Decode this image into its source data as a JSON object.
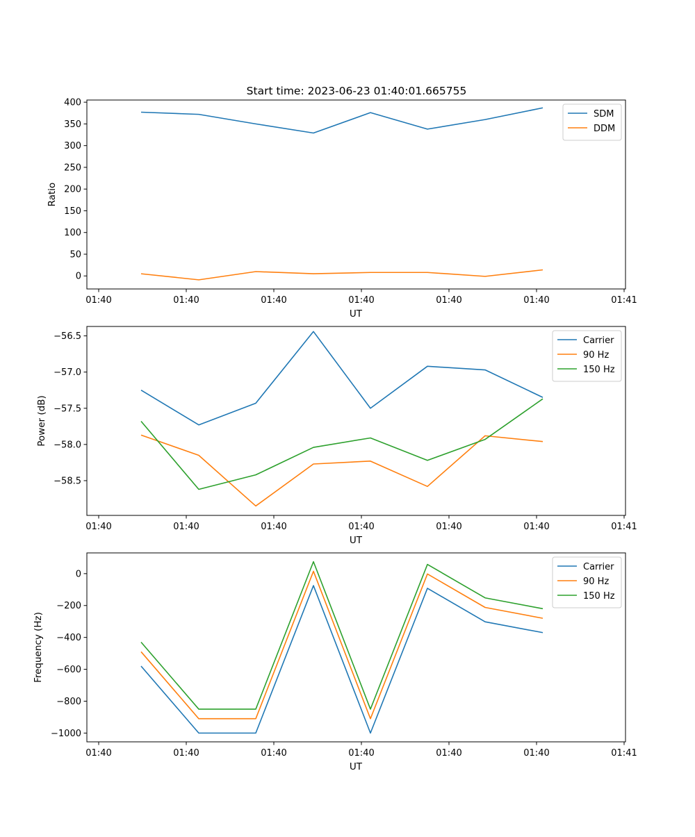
{
  "figure": {
    "title": "Start time: 2023-06-23 01:40:01.665755"
  },
  "chart_data": [
    {
      "type": "line",
      "title": "Start time: 2023-06-23 01:40:01.665755",
      "xlabel": "UT",
      "ylabel": "Ratio",
      "x": [
        1,
        2,
        3,
        4,
        5,
        6,
        7,
        8
      ],
      "x_ticks": [
        "01:40",
        "01:40",
        "01:40",
        "01:40",
        "01:40",
        "01:40",
        "01:41"
      ],
      "y_ticks": [
        0,
        50,
        100,
        150,
        200,
        250,
        300,
        350,
        400
      ],
      "ylim": [
        -30,
        405
      ],
      "legend_position": "top-right",
      "grid": false,
      "series": [
        {
          "name": "SDM",
          "color": "#1f77b4",
          "values": [
            377,
            372,
            350,
            329,
            376,
            338,
            360,
            387
          ]
        },
        {
          "name": "DDM",
          "color": "#ff7f0e",
          "values": [
            5,
            -9,
            10,
            5,
            8,
            8,
            -1,
            14
          ]
        }
      ]
    },
    {
      "type": "line",
      "xlabel": "UT",
      "ylabel": "Power (dB)",
      "x": [
        1,
        2,
        3,
        4,
        5,
        6,
        7,
        8
      ],
      "x_ticks": [
        "01:40",
        "01:40",
        "01:40",
        "01:40",
        "01:40",
        "01:40",
        "01:41"
      ],
      "y_ticks": [
        -56.5,
        -57.0,
        -57.5,
        -58.0,
        -58.5
      ],
      "ylim": [
        -58.98,
        -56.37
      ],
      "legend_position": "top-right",
      "grid": false,
      "series": [
        {
          "name": "Carrier",
          "color": "#1f77b4",
          "values": [
            -57.25,
            -57.73,
            -57.43,
            -56.44,
            -57.5,
            -56.92,
            -56.97,
            -57.35
          ]
        },
        {
          "name": "90 Hz",
          "color": "#ff7f0e",
          "values": [
            -57.87,
            -58.15,
            -58.85,
            -58.27,
            -58.23,
            -58.58,
            -57.88,
            -57.96
          ]
        },
        {
          "name": "150 Hz",
          "color": "#2ca02c",
          "values": [
            -57.68,
            -58.62,
            -58.42,
            -58.04,
            -57.91,
            -58.22,
            -57.93,
            -57.37
          ]
        }
      ]
    },
    {
      "type": "line",
      "xlabel": "UT",
      "ylabel": "Frequency (Hz)",
      "x": [
        1,
        2,
        3,
        4,
        5,
        6,
        7,
        8
      ],
      "x_ticks": [
        "01:40",
        "01:40",
        "01:40",
        "01:40",
        "01:40",
        "01:40",
        "01:41"
      ],
      "y_ticks": [
        0,
        -200,
        -400,
        -600,
        -800,
        -1000
      ],
      "ylim": [
        -1055,
        130
      ],
      "legend_position": "top-right",
      "grid": false,
      "series": [
        {
          "name": "Carrier",
          "color": "#1f77b4",
          "values": [
            -580,
            -1000,
            -1000,
            -75,
            -1000,
            -92,
            -302,
            -370
          ]
        },
        {
          "name": "90 Hz",
          "color": "#ff7f0e",
          "values": [
            -490,
            -910,
            -910,
            15,
            -910,
            -2,
            -212,
            -280
          ]
        },
        {
          "name": "150 Hz",
          "color": "#2ca02c",
          "values": [
            -430,
            -850,
            -850,
            75,
            -850,
            58,
            -152,
            -220
          ]
        }
      ]
    }
  ]
}
